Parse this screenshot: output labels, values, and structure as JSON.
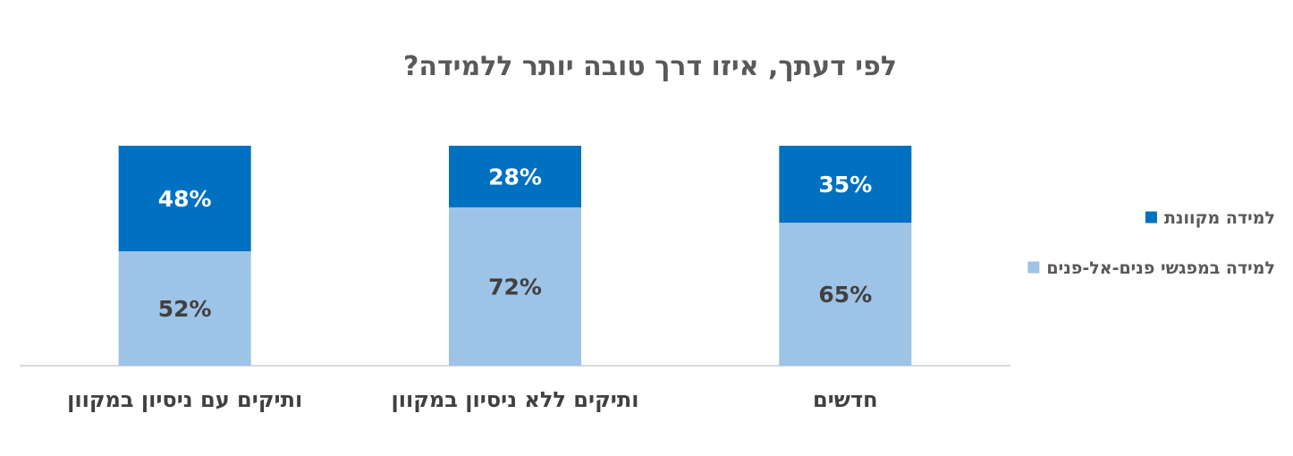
{
  "chart_data": {
    "type": "bar",
    "stacked": true,
    "percent_stacked": true,
    "title": "לפי דעתך, איזו דרך טובה יותר ללמידה?",
    "categories": [
      "חדשים",
      "ותיקים ללא ניסיון במקוון",
      "ותיקים עם ניסיון במקוון"
    ],
    "category_order": "right-to-left",
    "ylim": [
      0,
      100
    ],
    "series": [
      {
        "name": "למידה במפגשי פנים-אל-פנים",
        "values": [
          65,
          72,
          52
        ],
        "color": "#9DC3E6",
        "label_color": "#404040"
      },
      {
        "name": "למידה מקוונת",
        "values": [
          35,
          28,
          48
        ],
        "color": "#0070C0",
        "label_color": "#FFFFFF"
      }
    ],
    "data_labels": true,
    "value_suffix": "%",
    "legend_position": "right",
    "grid": false
  }
}
